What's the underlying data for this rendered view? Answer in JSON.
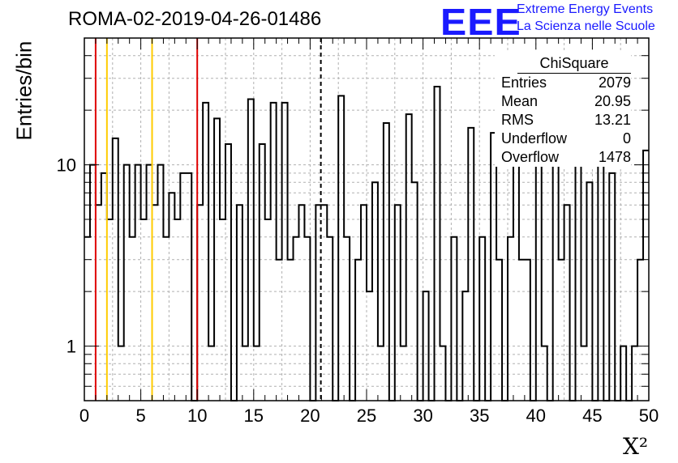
{
  "title": "ROMA-02-2019-04-26-01486",
  "logo": {
    "mark": "EEE",
    "line1": "Extreme Energy Events",
    "line2": "La Scienza nelle Scuole",
    "color": "#1a1aff"
  },
  "stats": {
    "title": "ChiSquare",
    "rows": [
      {
        "label": "Entries",
        "value": "2079"
      },
      {
        "label": "Mean",
        "value": "20.95"
      },
      {
        "label": "RMS",
        "value": "13.21"
      },
      {
        "label": "Underflow",
        "value": "0"
      },
      {
        "label": "Overflow",
        "value": "1478"
      }
    ]
  },
  "chart_data": {
    "type": "bar",
    "histogram": true,
    "ylabel": "Entries/bin",
    "xlabel": "X²",
    "xlim": [
      0,
      50
    ],
    "ylim": [
      0.5,
      50
    ],
    "yscale": "log",
    "grid": true,
    "bin_width": 0.5,
    "x_ticks": [
      "0",
      "5",
      "10",
      "15",
      "20",
      "25",
      "30",
      "35",
      "40",
      "45",
      "50"
    ],
    "y_ticks": [
      "1",
      "10"
    ],
    "values": [
      4,
      10,
      6,
      9,
      5,
      14,
      1,
      10,
      4,
      10,
      5,
      10,
      6,
      10,
      4,
      7,
      5,
      9,
      9,
      0,
      6,
      22,
      1,
      18,
      5,
      13,
      0,
      6,
      1,
      23,
      1,
      13,
      5,
      22,
      3,
      22,
      3,
      4,
      6,
      4,
      0,
      6,
      6,
      4,
      0,
      24,
      4,
      0,
      3,
      6,
      2,
      8,
      1,
      17,
      0,
      6,
      1,
      19,
      8,
      0,
      2,
      0,
      27,
      1,
      0,
      4,
      0,
      2,
      16,
      0,
      4,
      0,
      15,
      3,
      0,
      4,
      15,
      3,
      3,
      0,
      12,
      1,
      0,
      11,
      3,
      6,
      0,
      18,
      1,
      8,
      0,
      13,
      0,
      9,
      0,
      1,
      0,
      1,
      3,
      12
    ],
    "vlines": [
      {
        "x": 1,
        "color": "#e00000",
        "style": "solid"
      },
      {
        "x": 2,
        "color": "#ffcc00",
        "style": "solid"
      },
      {
        "x": 6,
        "color": "#ffcc00",
        "style": "solid"
      },
      {
        "x": 10,
        "color": "#e00000",
        "style": "solid"
      },
      {
        "x": 20.95,
        "color": "#000000",
        "style": "dashed"
      }
    ],
    "line_color": "#000000"
  }
}
